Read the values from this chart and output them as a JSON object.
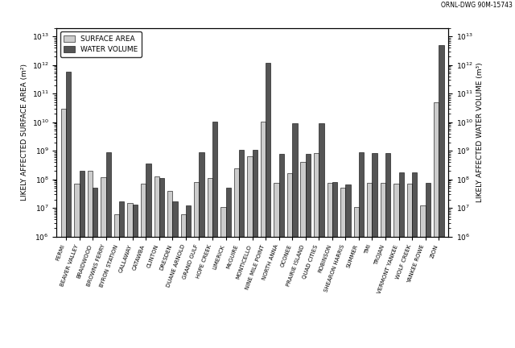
{
  "sites": [
    "FERMI",
    "BEAVER VALLEY",
    "BRAIDWOOD",
    "BROWNS FERRY",
    "BYRON STATION",
    "CALLAWAY",
    "CATAWBA",
    "CLINTON",
    "DRESDEN",
    "DUANE ARNOLD",
    "GRAND GULF",
    "HOPE CREEK",
    "LIMERICK",
    "McGUIRE",
    "MONTICELLO",
    "NINE MILE POINT",
    "NORTH ANNA",
    "OCONEE",
    "PRAIRIE ISLAND",
    "QUAD CITIES",
    "ROBINSON",
    "SHEARON HARRIS",
    "SUMMER",
    "TMI",
    "TROJAN",
    "VERMONT YANKEE",
    "WOLF CREEK",
    "YANKEE ROWE",
    "ZION"
  ],
  "surface_area": [
    30000000000.0,
    70000000.0,
    200000000.0,
    120000000.0,
    6000000.0,
    15000000.0,
    70000000.0,
    130000000.0,
    40000000.0,
    6000000.0,
    80000000.0,
    110000000.0,
    11000000.0,
    250000000.0,
    650000000.0,
    10500000000.0,
    75000000.0,
    170000000.0,
    400000000.0,
    850000000.0,
    75000000.0,
    50000000.0,
    11000000.0,
    75000000.0,
    75000000.0,
    70000000.0,
    70000000.0,
    12000000.0,
    50000000000.0
  ],
  "water_volume": [
    600000000000.0,
    200000000.0,
    50000000.0,
    900000000.0,
    17000000.0,
    13000000.0,
    350000000.0,
    110000000.0,
    17000000.0,
    12000000.0,
    900000000.0,
    10500000000.0,
    50000000.0,
    1100000000.0,
    1100000000.0,
    1200000000000.0,
    800000000.0,
    9500000000.0,
    800000000.0,
    9500000000.0,
    80000000.0,
    65000000.0,
    900000000.0,
    850000000.0,
    850000000.0,
    180000000.0,
    180000000.0,
    75000000.0,
    5000000000000.0
  ],
  "surface_area_color": "#cccccc",
  "water_volume_color": "#555555",
  "ylabel_left": "LIKELY AFFECTED SURFACE AREA (m²)",
  "ylabel_right": "LIKELY AFFECTED WATER VOLUME (m³)",
  "ylim": [
    1000000.0,
    20000000000000.0
  ],
  "annotation": "ORNL-DWG 90M-15743",
  "legend_labels": [
    "SURFACE AREA",
    "WATER VOLUME"
  ]
}
